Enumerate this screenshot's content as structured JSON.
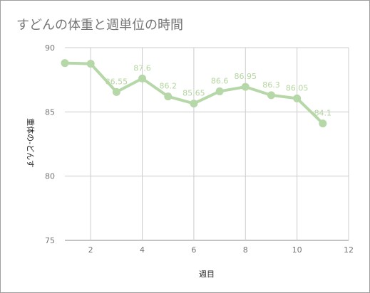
{
  "chart_data": {
    "type": "line",
    "title": "すどんの体重と週単位の時間",
    "xlabel": "週目",
    "ylabel": "重体の-どんす",
    "xlim": [
      1,
      12
    ],
    "ylim": [
      75,
      90
    ],
    "x_ticks": [
      2,
      4,
      6,
      8,
      10,
      12
    ],
    "y_ticks": [
      75,
      80,
      85,
      90
    ],
    "grid": true,
    "legend": "none",
    "series": [
      {
        "x": [
          1,
          2,
          3,
          4,
          5,
          6,
          7,
          8,
          9,
          10,
          11
        ],
        "y": [
          88.8,
          88.75,
          86.55,
          87.6,
          86.2,
          85.65,
          86.6,
          86.95,
          86.3,
          86.05,
          84.1
        ],
        "labels": [
          "",
          "",
          "86.55",
          "87.6",
          "86.2",
          "85.65",
          "86.6",
          "86.95",
          "86.3",
          "86.05",
          "84.1"
        ],
        "color": "#b6d7a8"
      }
    ]
  }
}
